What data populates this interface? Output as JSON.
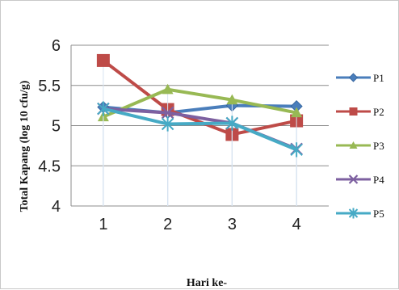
{
  "chart_data": {
    "type": "line",
    "title": "",
    "xlabel": "Hari ke-",
    "ylabel": "Total Kapang (log 10 cfu/g)",
    "categories": [
      "1",
      "2",
      "3",
      "4"
    ],
    "ylim": [
      4,
      6
    ],
    "yticks": [
      "4",
      "4.5",
      "5",
      "5.5",
      "6"
    ],
    "grid": "horizontal",
    "legend_position": "right",
    "series": [
      {
        "name": "P1",
        "values": [
          5.23,
          5.16,
          5.25,
          5.24
        ],
        "color": "#4a7ebb",
        "marker": "diamond"
      },
      {
        "name": "P2",
        "values": [
          5.81,
          5.2,
          4.89,
          5.06
        ],
        "color": "#be4b48",
        "marker": "square"
      },
      {
        "name": "P3",
        "values": [
          5.11,
          5.45,
          5.32,
          5.16
        ],
        "color": "#98b954",
        "marker": "triangle"
      },
      {
        "name": "P4",
        "values": [
          5.21,
          5.16,
          5.03,
          4.71
        ],
        "color": "#7d60a0",
        "marker": "x"
      },
      {
        "name": "P5",
        "values": [
          5.21,
          5.02,
          5.03,
          4.7
        ],
        "color": "#46aac5",
        "marker": "star"
      }
    ]
  }
}
